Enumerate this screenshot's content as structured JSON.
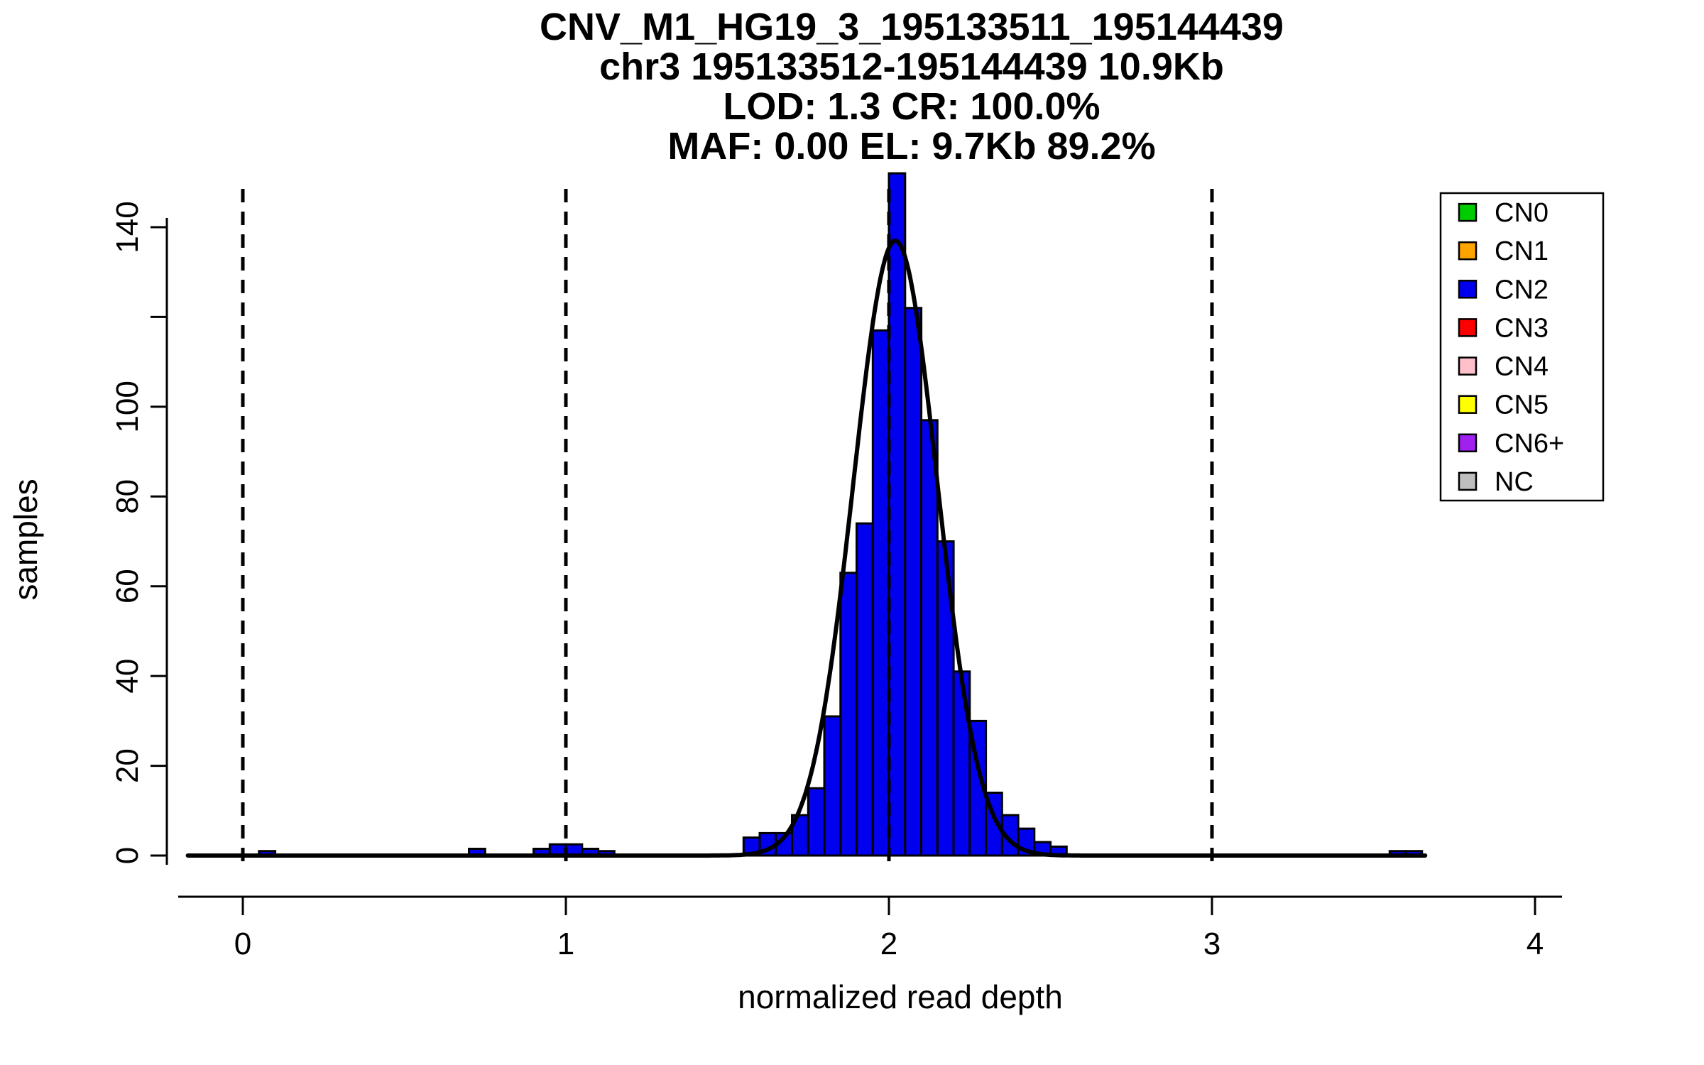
{
  "chart_data": {
    "type": "bar",
    "subtype": "histogram-with-gaussian-fit",
    "title_lines": [
      "CNV_M1_HG19_3_195133511_195144439",
      "chr3 195133512-195144439 10.9Kb",
      "LOD: 1.3 CR: 100.0%",
      "MAF: 0.00 EL: 9.7Kb 89.2%"
    ],
    "xlabel": "normalized read depth",
    "ylabel": "samples",
    "xlim": [
      -0.2,
      4.2
    ],
    "ylim": [
      0,
      152
    ],
    "x_ticks": [
      0,
      1,
      2,
      3,
      4
    ],
    "y_ticks": [
      0,
      20,
      40,
      60,
      80,
      100,
      120,
      140
    ],
    "y_tick_labels": [
      "0",
      "20",
      "40",
      "60",
      "80",
      "100",
      "",
      "140"
    ],
    "bin_width": 0.05,
    "bar_color": "#0000EE",
    "bar_border": "#000000",
    "bars": [
      {
        "x": 0.05,
        "h": 1
      },
      {
        "x": 0.7,
        "h": 1.5
      },
      {
        "x": 0.9,
        "h": 1.5
      },
      {
        "x": 0.95,
        "h": 2.5
      },
      {
        "x": 1.0,
        "h": 2.5
      },
      {
        "x": 1.05,
        "h": 1.5
      },
      {
        "x": 1.1,
        "h": 1
      },
      {
        "x": 1.55,
        "h": 4
      },
      {
        "x": 1.6,
        "h": 5
      },
      {
        "x": 1.65,
        "h": 5
      },
      {
        "x": 1.7,
        "h": 9
      },
      {
        "x": 1.75,
        "h": 15
      },
      {
        "x": 1.8,
        "h": 31
      },
      {
        "x": 1.85,
        "h": 63
      },
      {
        "x": 1.9,
        "h": 74
      },
      {
        "x": 1.95,
        "h": 117
      },
      {
        "x": 2.0,
        "h": 152
      },
      {
        "x": 2.05,
        "h": 122
      },
      {
        "x": 2.1,
        "h": 97
      },
      {
        "x": 2.15,
        "h": 70
      },
      {
        "x": 2.2,
        "h": 41
      },
      {
        "x": 2.25,
        "h": 30
      },
      {
        "x": 2.3,
        "h": 14
      },
      {
        "x": 2.35,
        "h": 9
      },
      {
        "x": 2.4,
        "h": 6
      },
      {
        "x": 2.45,
        "h": 3
      },
      {
        "x": 2.5,
        "h": 2
      },
      {
        "x": 3.55,
        "h": 1
      },
      {
        "x": 3.6,
        "h": 1
      }
    ],
    "fit_curve": {
      "type": "gaussian",
      "mean": 2.02,
      "sd": 0.13,
      "peak": 137,
      "x_start": -0.17,
      "x_end": 3.66,
      "color": "#000000"
    },
    "dashed_lines_x": [
      0,
      1,
      2,
      3
    ],
    "grid": false,
    "legend": {
      "position": "top-right",
      "items": [
        {
          "label": "CN0",
          "color": "#00CC00"
        },
        {
          "label": "CN1",
          "color": "#FFA500"
        },
        {
          "label": "CN2",
          "color": "#0000EE"
        },
        {
          "label": "CN3",
          "color": "#FF0000"
        },
        {
          "label": "CN4",
          "color": "#FFC0CB"
        },
        {
          "label": "CN5",
          "color": "#FFFF00"
        },
        {
          "label": "CN6+",
          "color": "#A020F0"
        },
        {
          "label": "NC",
          "color": "#BEBEBE"
        }
      ]
    }
  }
}
